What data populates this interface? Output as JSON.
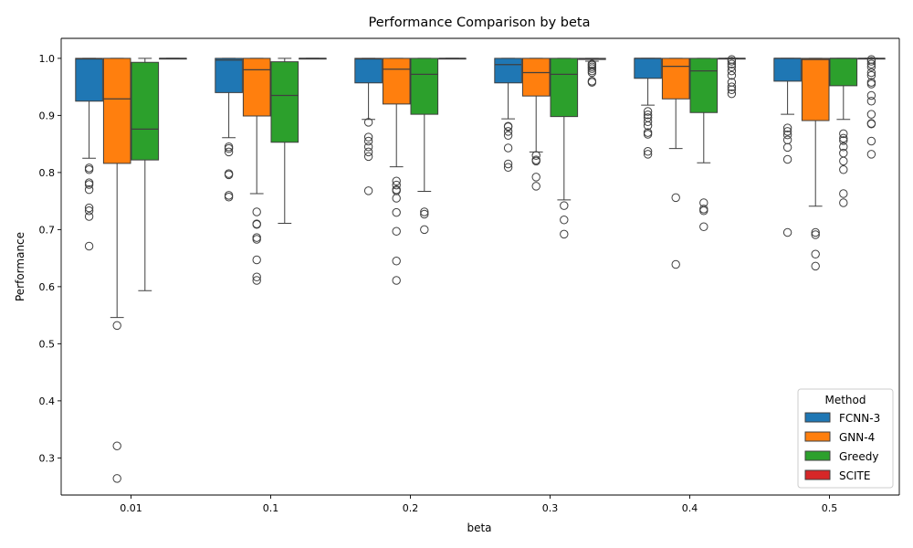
{
  "chart_data": {
    "type": "box",
    "title": "Performance Comparison by beta",
    "xlabel": "beta",
    "ylabel": "Performance",
    "categories": [
      "0.01",
      "0.1",
      "0.2",
      "0.3",
      "0.4",
      "0.5"
    ],
    "ylim": [
      0.235,
      1.035
    ],
    "yticks": [
      0.3,
      0.4,
      0.5,
      0.6,
      0.7,
      0.8,
      0.9,
      1.0
    ],
    "ytick_labels": [
      "0.3",
      "0.4",
      "0.5",
      "0.6",
      "0.7",
      "0.8",
      "0.9",
      "1.0"
    ],
    "grid": false,
    "legend": {
      "title": "Method",
      "placement": "lower-right"
    },
    "series": [
      {
        "name": "FCNN-3",
        "color": "#1f77b4",
        "edge": "#1a4f7a",
        "boxes": [
          {
            "q1": 0.925,
            "median": 0.999,
            "q3": 1.0,
            "whislo": 0.825,
            "whishi": 1.0,
            "fliers": [
              0.808,
              0.805,
              0.782,
              0.779,
              0.77,
              0.738,
              0.733,
              0.723,
              0.671
            ]
          },
          {
            "q1": 0.94,
            "median": 0.997,
            "q3": 1.0,
            "whislo": 0.861,
            "whishi": 1.0,
            "fliers": [
              0.845,
              0.842,
              0.836,
              0.798,
              0.796,
              0.76,
              0.757
            ]
          },
          {
            "q1": 0.957,
            "median": 0.999,
            "q3": 1.0,
            "whislo": 0.893,
            "whishi": 1.0,
            "fliers": [
              0.888,
              0.862,
              0.855,
              0.845,
              0.836,
              0.828,
              0.768
            ]
          },
          {
            "q1": 0.957,
            "median": 0.989,
            "q3": 1.0,
            "whislo": 0.894,
            "whishi": 1.0,
            "fliers": [
              0.881,
              0.88,
              0.872,
              0.865,
              0.843,
              0.815,
              0.809
            ]
          },
          {
            "q1": 0.965,
            "median": 1.0,
            "q3": 1.0,
            "whislo": 0.918,
            "whishi": 1.0,
            "fliers": [
              0.907,
              0.901,
              0.896,
              0.889,
              0.882,
              0.87,
              0.867,
              0.837,
              0.832
            ]
          },
          {
            "q1": 0.96,
            "median": 1.0,
            "q3": 1.0,
            "whislo": 0.902,
            "whishi": 1.0,
            "fliers": [
              0.878,
              0.872,
              0.866,
              0.857,
              0.844,
              0.823,
              0.695
            ]
          }
        ]
      },
      {
        "name": "GNN-4",
        "color": "#ff7f0e",
        "edge": "#a9540b",
        "boxes": [
          {
            "q1": 0.816,
            "median": 0.929,
            "q3": 1.0,
            "whislo": 0.546,
            "whishi": 1.0,
            "fliers": [
              0.532,
              0.321,
              0.264
            ]
          },
          {
            "q1": 0.899,
            "median": 0.98,
            "q3": 1.0,
            "whislo": 0.763,
            "whishi": 1.0,
            "fliers": [
              0.731,
              0.71,
              0.709,
              0.686,
              0.683,
              0.647,
              0.617,
              0.611
            ]
          },
          {
            "q1": 0.92,
            "median": 0.981,
            "q3": 1.0,
            "whislo": 0.81,
            "whishi": 1.0,
            "fliers": [
              0.785,
              0.778,
              0.77,
              0.768,
              0.755,
              0.73,
              0.697,
              0.645,
              0.611
            ]
          },
          {
            "q1": 0.934,
            "median": 0.975,
            "q3": 1.0,
            "whislo": 0.836,
            "whishi": 1.0,
            "fliers": [
              0.83,
              0.822,
              0.82,
              0.792,
              0.776
            ]
          },
          {
            "q1": 0.929,
            "median": 0.986,
            "q3": 1.0,
            "whislo": 0.842,
            "whishi": 1.0,
            "fliers": [
              0.756,
              0.639
            ]
          },
          {
            "q1": 0.891,
            "median": 0.998,
            "q3": 1.0,
            "whislo": 0.741,
            "whishi": 1.0,
            "fliers": [
              0.695,
              0.691,
              0.657,
              0.636
            ]
          }
        ]
      },
      {
        "name": "Greedy",
        "color": "#2ca02c",
        "edge": "#1e6e1e",
        "boxes": [
          {
            "q1": 0.822,
            "median": 0.876,
            "q3": 0.993,
            "whislo": 0.593,
            "whishi": 1.0,
            "fliers": []
          },
          {
            "q1": 0.853,
            "median": 0.935,
            "q3": 0.994,
            "whislo": 0.711,
            "whishi": 1.0,
            "fliers": []
          },
          {
            "q1": 0.902,
            "median": 0.972,
            "q3": 1.0,
            "whislo": 0.767,
            "whishi": 1.0,
            "fliers": [
              0.731,
              0.727,
              0.7
            ]
          },
          {
            "q1": 0.898,
            "median": 0.972,
            "q3": 1.0,
            "whislo": 0.752,
            "whishi": 1.0,
            "fliers": [
              0.742,
              0.717,
              0.692
            ]
          },
          {
            "q1": 0.905,
            "median": 0.978,
            "q3": 1.0,
            "whislo": 0.817,
            "whishi": 1.0,
            "fliers": [
              0.747,
              0.736,
              0.733,
              0.705
            ]
          },
          {
            "q1": 0.952,
            "median": 1.0,
            "q3": 1.0,
            "whislo": 0.893,
            "whishi": 1.0,
            "fliers": [
              0.868,
              0.86,
              0.856,
              0.845,
              0.834,
              0.82,
              0.805,
              0.763,
              0.747
            ]
          }
        ]
      },
      {
        "name": "SCITE",
        "color": "#d62728",
        "edge": "#8b1a1b",
        "boxes": [
          {
            "q1": 1.0,
            "median": 1.0,
            "q3": 1.0,
            "whislo": 1.0,
            "whishi": 1.0,
            "fliers": []
          },
          {
            "q1": 1.0,
            "median": 1.0,
            "q3": 1.0,
            "whislo": 1.0,
            "whishi": 1.0,
            "fliers": []
          },
          {
            "q1": 1.0,
            "median": 1.0,
            "q3": 1.0,
            "whislo": 1.0,
            "whishi": 1.0,
            "fliers": []
          },
          {
            "q1": 0.998,
            "median": 0.999,
            "q3": 1.0,
            "whislo": 0.995,
            "whishi": 1.0,
            "fliers": [
              0.99,
              0.988,
              0.985,
              0.982,
              0.978,
              0.975,
              0.96,
              0.958
            ]
          },
          {
            "q1": 1.0,
            "median": 1.0,
            "q3": 1.0,
            "whislo": 1.0,
            "whishi": 1.0,
            "fliers": [
              0.998,
              0.995,
              0.99,
              0.985,
              0.978,
              0.97,
              0.958,
              0.95,
              0.945,
              0.938
            ]
          },
          {
            "q1": 1.0,
            "median": 1.0,
            "q3": 1.0,
            "whislo": 1.0,
            "whishi": 1.0,
            "fliers": [
              0.998,
              0.995,
              0.99,
              0.985,
              0.975,
              0.97,
              0.958,
              0.955,
              0.935,
              0.925,
              0.902,
              0.886,
              0.885,
              0.855,
              0.832
            ]
          }
        ]
      }
    ]
  }
}
